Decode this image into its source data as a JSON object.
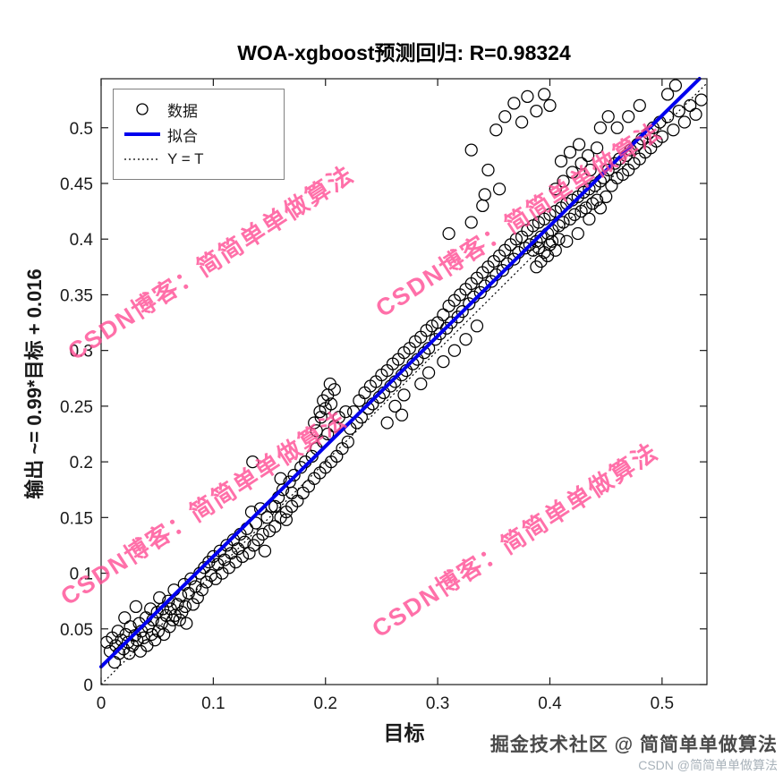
{
  "title": "WOA-xgboost预测回归: R=0.98324",
  "xlabel": "目标",
  "ylabel": "输出 ~= 0.99*目标 + 0.016",
  "legend": {
    "data": "数据",
    "fit": "拟合",
    "yt": "Y = T"
  },
  "watermark": {
    "text": "CSDN博客：简简单单做算法",
    "color": "#ff4d94"
  },
  "footer": {
    "juejin": "掘金技术社区 @ 简简单单做算法",
    "csdn": "CSDN @简简单单做算法"
  },
  "chart_data": {
    "type": "scatter",
    "title": "WOA-xgboost预测回归: R=0.98324",
    "xlabel": "目标",
    "ylabel": "输出 ~= 0.99*目标 + 0.016",
    "xlim": [
      0,
      0.54
    ],
    "ylim": [
      0,
      0.544
    ],
    "x_ticks": [
      0,
      0.1,
      0.2,
      0.3,
      0.4,
      0.5
    ],
    "y_ticks": [
      0,
      0.05,
      0.1,
      0.15,
      0.2,
      0.25,
      0.3,
      0.35,
      0.4,
      0.45,
      0.5
    ],
    "grid": false,
    "legend_position": "top-left",
    "fit_line": {
      "label": "拟合",
      "slope": 0.99,
      "intercept": 0.016,
      "color": "#0000ee",
      "width": 4
    },
    "identity_line": {
      "label": "Y = T",
      "style": "dotted",
      "color": "#000000"
    },
    "series": [
      {
        "name": "数据",
        "marker": "circle",
        "marker_color": "#000000",
        "points": [
          [
            0.005,
            0.038
          ],
          [
            0.008,
            0.03
          ],
          [
            0.01,
            0.042
          ],
          [
            0.012,
            0.02
          ],
          [
            0.013,
            0.035
          ],
          [
            0.015,
            0.048
          ],
          [
            0.016,
            0.028
          ],
          [
            0.018,
            0.04
          ],
          [
            0.02,
            0.032
          ],
          [
            0.021,
            0.06
          ],
          [
            0.022,
            0.045
          ],
          [
            0.024,
            0.038
          ],
          [
            0.025,
            0.028
          ],
          [
            0.026,
            0.052
          ],
          [
            0.028,
            0.035
          ],
          [
            0.03,
            0.044
          ],
          [
            0.031,
            0.07
          ],
          [
            0.032,
            0.04
          ],
          [
            0.034,
            0.055
          ],
          [
            0.035,
            0.03
          ],
          [
            0.036,
            0.048
          ],
          [
            0.038,
            0.042
          ],
          [
            0.04,
            0.06
          ],
          [
            0.041,
            0.035
          ],
          [
            0.042,
            0.052
          ],
          [
            0.044,
            0.068
          ],
          [
            0.045,
            0.045
          ],
          [
            0.046,
            0.058
          ],
          [
            0.048,
            0.04
          ],
          [
            0.05,
            0.065
          ],
          [
            0.051,
            0.048
          ],
          [
            0.052,
            0.078
          ],
          [
            0.054,
            0.055
          ],
          [
            0.055,
            0.068
          ],
          [
            0.056,
            0.045
          ],
          [
            0.058,
            0.062
          ],
          [
            0.06,
            0.075
          ],
          [
            0.061,
            0.052
          ],
          [
            0.062,
            0.068
          ],
          [
            0.064,
            0.058
          ],
          [
            0.065,
            0.085
          ],
          [
            0.066,
            0.062
          ],
          [
            0.068,
            0.072
          ],
          [
            0.07,
            0.058
          ],
          [
            0.071,
            0.08
          ],
          [
            0.072,
            0.065
          ],
          [
            0.074,
            0.09
          ],
          [
            0.075,
            0.07
          ],
          [
            0.076,
            0.055
          ],
          [
            0.078,
            0.082
          ],
          [
            0.08,
            0.095
          ],
          [
            0.082,
            0.072
          ],
          [
            0.084,
            0.088
          ],
          [
            0.086,
            0.078
          ],
          [
            0.088,
            0.1
          ],
          [
            0.09,
            0.085
          ],
          [
            0.092,
            0.105
          ],
          [
            0.094,
            0.092
          ],
          [
            0.096,
            0.11
          ],
          [
            0.098,
            0.098
          ],
          [
            0.1,
            0.115
          ],
          [
            0.102,
            0.095
          ],
          [
            0.104,
            0.108
          ],
          [
            0.106,
            0.12
          ],
          [
            0.108,
            0.1
          ],
          [
            0.11,
            0.112
          ],
          [
            0.112,
            0.125
          ],
          [
            0.114,
            0.105
          ],
          [
            0.116,
            0.118
          ],
          [
            0.118,
            0.13
          ],
          [
            0.12,
            0.11
          ],
          [
            0.122,
            0.122
          ],
          [
            0.124,
            0.135
          ],
          [
            0.126,
            0.115
          ],
          [
            0.128,
            0.128
          ],
          [
            0.13,
            0.14
          ],
          [
            0.132,
            0.118
          ],
          [
            0.134,
            0.155
          ],
          [
            0.135,
            0.2
          ],
          [
            0.136,
            0.125
          ],
          [
            0.138,
            0.145
          ],
          [
            0.14,
            0.13
          ],
          [
            0.142,
            0.158
          ],
          [
            0.144,
            0.135
          ],
          [
            0.146,
            0.12
          ],
          [
            0.148,
            0.15
          ],
          [
            0.15,
            0.138
          ],
          [
            0.155,
            0.16
          ],
          [
            0.16,
            0.185
          ],
          [
            0.165,
            0.148
          ],
          [
            0.17,
            0.172
          ],
          [
            0.152,
            0.16
          ],
          [
            0.155,
            0.142
          ],
          [
            0.158,
            0.168
          ],
          [
            0.16,
            0.15
          ],
          [
            0.162,
            0.175
          ],
          [
            0.165,
            0.155
          ],
          [
            0.168,
            0.182
          ],
          [
            0.17,
            0.16
          ],
          [
            0.172,
            0.188
          ],
          [
            0.175,
            0.165
          ],
          [
            0.178,
            0.195
          ],
          [
            0.18,
            0.172
          ],
          [
            0.182,
            0.2
          ],
          [
            0.185,
            0.178
          ],
          [
            0.188,
            0.205
          ],
          [
            0.19,
            0.185
          ],
          [
            0.192,
            0.212
          ],
          [
            0.195,
            0.19
          ],
          [
            0.198,
            0.218
          ],
          [
            0.2,
            0.195
          ],
          [
            0.202,
            0.225
          ],
          [
            0.205,
            0.2
          ],
          [
            0.208,
            0.232
          ],
          [
            0.21,
            0.205
          ],
          [
            0.212,
            0.24
          ],
          [
            0.215,
            0.212
          ],
          [
            0.218,
            0.245
          ],
          [
            0.22,
            0.218
          ],
          [
            0.19,
            0.235
          ],
          [
            0.195,
            0.245
          ],
          [
            0.198,
            0.255
          ],
          [
            0.2,
            0.248
          ],
          [
            0.202,
            0.26
          ],
          [
            0.205,
            0.252
          ],
          [
            0.208,
            0.265
          ],
          [
            0.192,
            0.228
          ],
          [
            0.196,
            0.24
          ],
          [
            0.204,
            0.27
          ],
          [
            0.222,
            0.23
          ],
          [
            0.225,
            0.245
          ],
          [
            0.228,
            0.235
          ],
          [
            0.23,
            0.255
          ],
          [
            0.232,
            0.24
          ],
          [
            0.235,
            0.262
          ],
          [
            0.238,
            0.248
          ],
          [
            0.24,
            0.268
          ],
          [
            0.242,
            0.252
          ],
          [
            0.245,
            0.272
          ],
          [
            0.248,
            0.258
          ],
          [
            0.25,
            0.278
          ],
          [
            0.252,
            0.262
          ],
          [
            0.255,
            0.282
          ],
          [
            0.258,
            0.268
          ],
          [
            0.26,
            0.288
          ],
          [
            0.262,
            0.272
          ],
          [
            0.265,
            0.292
          ],
          [
            0.268,
            0.278
          ],
          [
            0.27,
            0.298
          ],
          [
            0.272,
            0.282
          ],
          [
            0.275,
            0.302
          ],
          [
            0.278,
            0.288
          ],
          [
            0.28,
            0.308
          ],
          [
            0.282,
            0.292
          ],
          [
            0.285,
            0.312
          ],
          [
            0.288,
            0.298
          ],
          [
            0.29,
            0.318
          ],
          [
            0.292,
            0.302
          ],
          [
            0.295,
            0.322
          ],
          [
            0.255,
            0.235
          ],
          [
            0.262,
            0.25
          ],
          [
            0.27,
            0.26
          ],
          [
            0.268,
            0.242
          ],
          [
            0.285,
            0.27
          ],
          [
            0.292,
            0.28
          ],
          [
            0.298,
            0.31
          ],
          [
            0.3,
            0.325
          ],
          [
            0.302,
            0.315
          ],
          [
            0.305,
            0.332
          ],
          [
            0.308,
            0.32
          ],
          [
            0.31,
            0.34
          ],
          [
            0.312,
            0.325
          ],
          [
            0.315,
            0.345
          ],
          [
            0.318,
            0.33
          ],
          [
            0.32,
            0.35
          ],
          [
            0.322,
            0.335
          ],
          [
            0.325,
            0.355
          ],
          [
            0.328,
            0.342
          ],
          [
            0.33,
            0.36
          ],
          [
            0.332,
            0.348
          ],
          [
            0.335,
            0.365
          ],
          [
            0.338,
            0.352
          ],
          [
            0.34,
            0.37
          ],
          [
            0.342,
            0.358
          ],
          [
            0.345,
            0.375
          ],
          [
            0.348,
            0.362
          ],
          [
            0.35,
            0.38
          ],
          [
            0.352,
            0.368
          ],
          [
            0.355,
            0.385
          ],
          [
            0.358,
            0.372
          ],
          [
            0.36,
            0.39
          ],
          [
            0.362,
            0.378
          ],
          [
            0.365,
            0.395
          ],
          [
            0.368,
            0.382
          ],
          [
            0.37,
            0.4
          ],
          [
            0.305,
            0.29
          ],
          [
            0.315,
            0.3
          ],
          [
            0.325,
            0.31
          ],
          [
            0.335,
            0.322
          ],
          [
            0.33,
            0.415
          ],
          [
            0.34,
            0.43
          ],
          [
            0.31,
            0.405
          ],
          [
            0.33,
            0.48
          ],
          [
            0.345,
            0.462
          ],
          [
            0.352,
            0.498
          ],
          [
            0.36,
            0.51
          ],
          [
            0.368,
            0.522
          ],
          [
            0.375,
            0.505
          ],
          [
            0.38,
            0.528
          ],
          [
            0.388,
            0.515
          ],
          [
            0.395,
            0.53
          ],
          [
            0.4,
            0.52
          ],
          [
            0.355,
            0.445
          ],
          [
            0.342,
            0.44
          ],
          [
            0.372,
            0.388
          ],
          [
            0.375,
            0.402
          ],
          [
            0.378,
            0.392
          ],
          [
            0.38,
            0.408
          ],
          [
            0.382,
            0.395
          ],
          [
            0.385,
            0.412
          ],
          [
            0.388,
            0.398
          ],
          [
            0.39,
            0.415
          ],
          [
            0.392,
            0.402
          ],
          [
            0.395,
            0.418
          ],
          [
            0.398,
            0.405
          ],
          [
            0.4,
            0.422
          ],
          [
            0.402,
            0.408
          ],
          [
            0.405,
            0.425
          ],
          [
            0.408,
            0.412
          ],
          [
            0.41,
            0.428
          ],
          [
            0.412,
            0.415
          ],
          [
            0.415,
            0.432
          ],
          [
            0.418,
            0.418
          ],
          [
            0.42,
            0.435
          ],
          [
            0.422,
            0.422
          ],
          [
            0.425,
            0.438
          ],
          [
            0.428,
            0.425
          ],
          [
            0.43,
            0.442
          ],
          [
            0.432,
            0.428
          ],
          [
            0.435,
            0.445
          ],
          [
            0.438,
            0.432
          ],
          [
            0.44,
            0.448
          ],
          [
            0.442,
            0.435
          ],
          [
            0.445,
            0.452
          ],
          [
            0.385,
            0.39
          ],
          [
            0.39,
            0.392
          ],
          [
            0.395,
            0.388
          ],
          [
            0.4,
            0.395
          ],
          [
            0.405,
            0.39
          ],
          [
            0.398,
            0.385
          ],
          [
            0.392,
            0.38
          ],
          [
            0.402,
            0.398
          ],
          [
            0.388,
            0.375
          ],
          [
            0.408,
            0.4
          ],
          [
            0.415,
            0.398
          ],
          [
            0.425,
            0.405
          ],
          [
            0.435,
            0.418
          ],
          [
            0.445,
            0.428
          ],
          [
            0.45,
            0.438
          ],
          [
            0.405,
            0.445
          ],
          [
            0.412,
            0.452
          ],
          [
            0.42,
            0.46
          ],
          [
            0.428,
            0.468
          ],
          [
            0.436,
            0.462
          ],
          [
            0.41,
            0.47
          ],
          [
            0.418,
            0.478
          ],
          [
            0.426,
            0.485
          ],
          [
            0.434,
            0.475
          ],
          [
            0.442,
            0.482
          ],
          [
            0.448,
            0.455
          ],
          [
            0.452,
            0.462
          ],
          [
            0.455,
            0.448
          ],
          [
            0.458,
            0.468
          ],
          [
            0.46,
            0.455
          ],
          [
            0.462,
            0.472
          ],
          [
            0.465,
            0.458
          ],
          [
            0.468,
            0.475
          ],
          [
            0.47,
            0.462
          ],
          [
            0.472,
            0.48
          ],
          [
            0.475,
            0.468
          ],
          [
            0.478,
            0.485
          ],
          [
            0.48,
            0.472
          ],
          [
            0.482,
            0.49
          ],
          [
            0.485,
            0.478
          ],
          [
            0.488,
            0.495
          ],
          [
            0.49,
            0.482
          ],
          [
            0.492,
            0.5
          ],
          [
            0.495,
            0.488
          ],
          [
            0.498,
            0.505
          ],
          [
            0.5,
            0.492
          ],
          [
            0.505,
            0.51
          ],
          [
            0.51,
            0.498
          ],
          [
            0.515,
            0.515
          ],
          [
            0.52,
            0.505
          ],
          [
            0.525,
            0.52
          ],
          [
            0.53,
            0.512
          ],
          [
            0.535,
            0.525
          ],
          [
            0.505,
            0.53
          ],
          [
            0.512,
            0.538
          ],
          [
            0.48,
            0.52
          ],
          [
            0.47,
            0.51
          ],
          [
            0.46,
            0.5
          ],
          [
            0.452,
            0.51
          ],
          [
            0.445,
            0.5
          ]
        ]
      }
    ]
  }
}
